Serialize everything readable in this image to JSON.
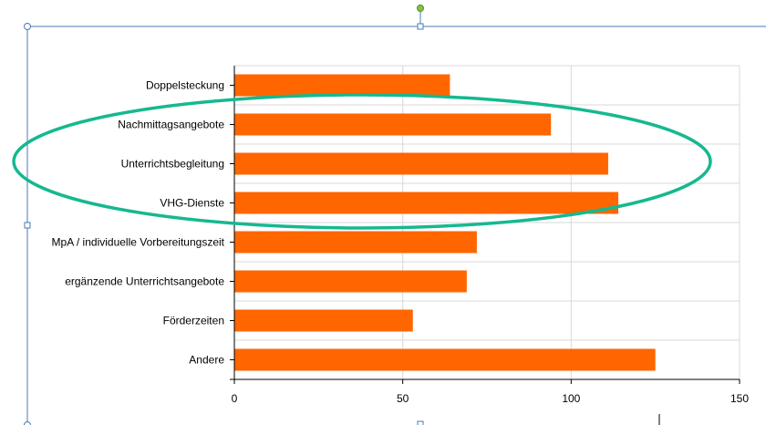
{
  "chart_data": {
    "type": "bar",
    "orientation": "horizontal",
    "categories": [
      "Doppelsteckung",
      "Nachmittagsangebote",
      "Unterrichtsbegleitung",
      "VHG-Dienste",
      "MpA / individuelle Vorbereitungszeit",
      "ergänzende Unterrichtsangebote",
      "Förderzeiten",
      "Andere"
    ],
    "series": [
      {
        "values": [
          64,
          94,
          111,
          114,
          72,
          69,
          53,
          125
        ]
      }
    ],
    "xlim": [
      0,
      150
    ],
    "x_ticks": [
      "0",
      "50",
      "100",
      "150"
    ],
    "grid": true,
    "legend": "none",
    "bar_color": "#ff6600",
    "highlight": {
      "shape": "ellipse",
      "color": "#16b890",
      "categories": [
        "Nachmittagsangebote",
        "Unterrichtsbegleitung",
        "VHG-Dienste"
      ]
    }
  },
  "editor": {
    "selection_color": "#4a7ab5",
    "rotate_handle_color": "#86c440"
  }
}
